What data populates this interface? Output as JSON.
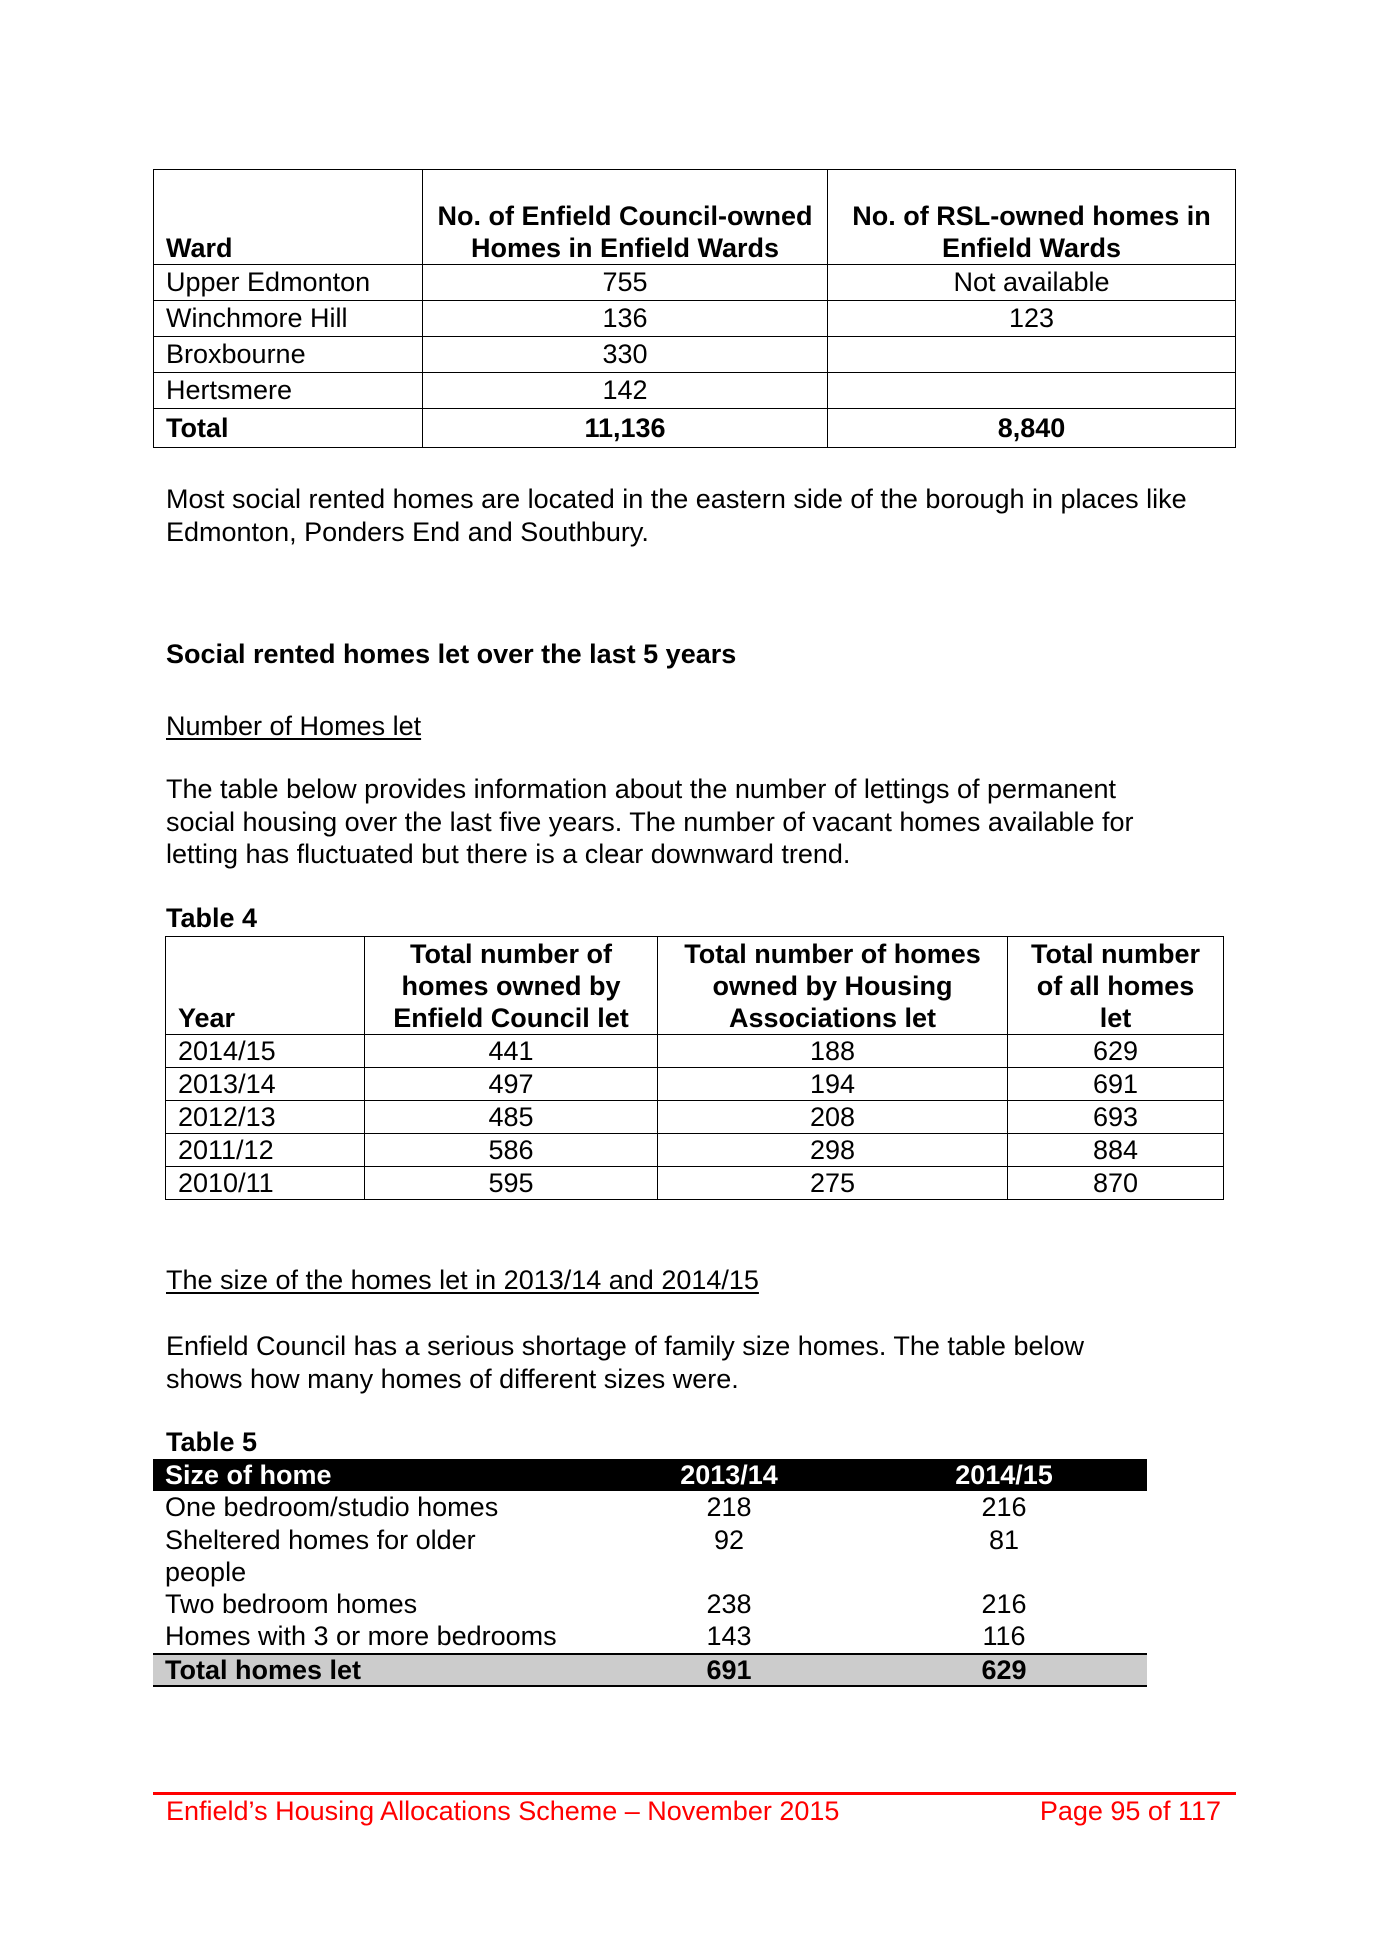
{
  "ward_table": {
    "headers": [
      "Ward",
      "No. of Enfield Council-owned Homes in Enfield Wards",
      "No. of RSL-owned homes in Enfield Wards"
    ],
    "rows": [
      [
        "Upper Edmonton",
        "755",
        "Not available"
      ],
      [
        "Winchmore Hill",
        "136",
        "123"
      ],
      [
        "Broxbourne",
        "330",
        ""
      ],
      [
        "Hertsmere",
        "142",
        ""
      ]
    ],
    "total": [
      "Total",
      "11,136",
      "8,840"
    ]
  },
  "para_location": "Most social rented homes are located in the eastern side of the borough in places like Edmonton, Ponders End and Southbury.",
  "heading_lets": "Social rented homes let over the last 5 years",
  "subheading_number": "Number of Homes let",
  "para_table4": "The table below provides information about the number of lettings of permanent social housing over the last five years.   The number of vacant homes available for letting has fluctuated but there is a clear downward trend.",
  "table4": {
    "label": "Table 4",
    "headers": [
      "Year",
      "Total number of homes owned by Enfield Council let",
      "Total number of homes owned by Housing Associations let",
      "Total number of all homes let"
    ],
    "rows": [
      [
        "2014/15",
        "441",
        "188",
        "629"
      ],
      [
        "2013/14",
        "497",
        "194",
        "691"
      ],
      [
        "2012/13",
        "485",
        "208",
        "693"
      ],
      [
        "2011/12",
        "586",
        "298",
        "884"
      ],
      [
        "2010/11",
        "595",
        "275",
        "870"
      ]
    ]
  },
  "subheading_size": "The size of the homes let in 2013/14 and 2014/15",
  "para_table5": "Enfield Council has a serious shortage of family size homes.  The table below shows how many homes of different sizes were.",
  "table5": {
    "label": "Table 5",
    "headers": [
      "Size of home",
      "2013/14",
      "2014/15"
    ],
    "rows": [
      [
        "One bedroom/studio homes",
        "218",
        "216"
      ],
      [
        "Sheltered homes for older people",
        "92",
        "81"
      ],
      [
        "Two bedroom homes",
        "238",
        "216"
      ],
      [
        "Homes with 3 or more bedrooms",
        "143",
        "116"
      ]
    ],
    "total": [
      "Total homes let",
      "691",
      "629"
    ]
  },
  "footer": {
    "title": "Enfield’s Housing Allocations Scheme – November 2015",
    "page": "Page 95 of 117",
    "color": "#ff0000"
  }
}
